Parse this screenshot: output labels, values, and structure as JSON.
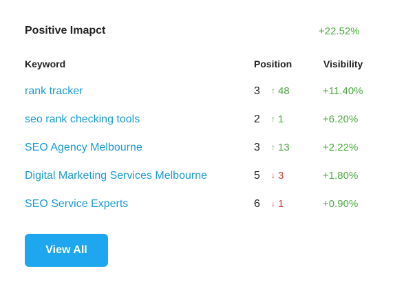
{
  "header": {
    "title": "Positive Imapct",
    "change": "+22.52%"
  },
  "columns": {
    "keyword": "Keyword",
    "position": "Position",
    "visibility": "Visibility"
  },
  "rows": [
    {
      "keyword": "rank tracker",
      "position": "3",
      "direction": "up",
      "arrow_icon": "arrow-up-icon",
      "arrow": "↑",
      "change": "48",
      "visibility": "+11.40%"
    },
    {
      "keyword": "seo rank checking tools",
      "position": "2",
      "direction": "up",
      "arrow_icon": "arrow-up-icon",
      "arrow": "↑",
      "change": "1",
      "visibility": "+6.20%"
    },
    {
      "keyword": "SEO Agency Melbourne",
      "position": "3",
      "direction": "up",
      "arrow_icon": "arrow-up-icon",
      "arrow": "↑",
      "change": "13",
      "visibility": "+2.22%"
    },
    {
      "keyword": "Digital Marketing Services Melbourne",
      "position": "5",
      "direction": "down",
      "arrow_icon": "arrow-down-icon",
      "arrow": "↓",
      "change": "3",
      "visibility": "+1.80%"
    },
    {
      "keyword": "SEO Service Experts",
      "position": "6",
      "direction": "down",
      "arrow_icon": "arrow-down-icon",
      "arrow": "↓",
      "change": "1",
      "visibility": "+0.90%"
    }
  ],
  "colors": {
    "link": "#1a9bd7",
    "positive": "#4caa3f",
    "negative": "#d33a3a",
    "button": "#1ea7ee"
  },
  "button": {
    "label": "View All"
  }
}
